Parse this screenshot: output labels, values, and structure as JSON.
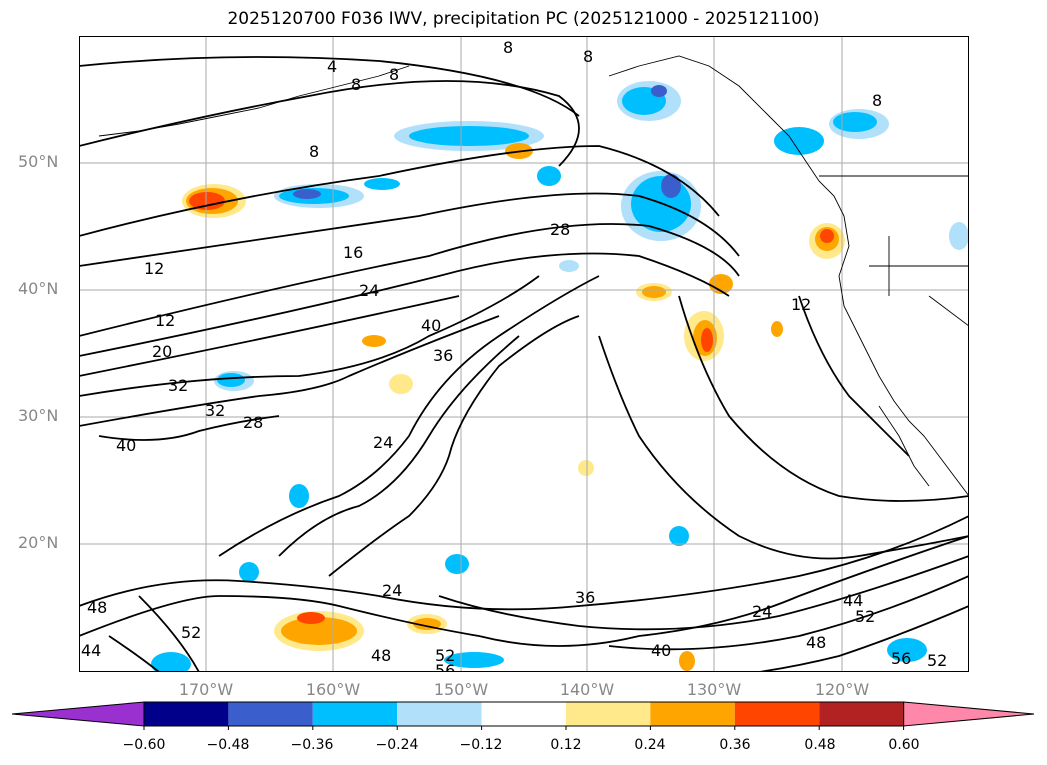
{
  "title": "2025120700 F036 IWV, precipitation PC (2025121000 - 2025121100)",
  "map": {
    "lat_labels": [
      "50°N",
      "40°N",
      "30°N",
      "20°N"
    ],
    "lon_labels": [
      "170°W",
      "160°W",
      "150°W",
      "140°W",
      "130°W",
      "120°W"
    ],
    "gridlines": true,
    "extent": {
      "lon": [
        -180,
        -110
      ],
      "lat": [
        10,
        60
      ]
    },
    "iwv_contour_labels": [
      "4",
      "8",
      "8",
      "8",
      "8",
      "8",
      "8",
      "12",
      "12",
      "12",
      "16",
      "20",
      "24",
      "24",
      "24",
      "24",
      "28",
      "28",
      "32",
      "32",
      "36",
      "36",
      "40",
      "40",
      "40",
      "44",
      "44",
      "48",
      "48",
      "48",
      "52",
      "52",
      "52",
      "52",
      "56",
      "56"
    ],
    "land_color": "#ffffff",
    "coast_color": "#000000"
  },
  "colorbar": {
    "ticks": [
      "−0.60",
      "−0.48",
      "−0.36",
      "−0.24",
      "−0.12",
      "0.12",
      "0.24",
      "0.36",
      "0.48",
      "0.60"
    ],
    "colors": [
      "#9b30d0",
      "#00008b",
      "#3a5fcd",
      "#00bfff",
      "#b0e0fa",
      "#ffffff",
      "#ffe98a",
      "#ffa500",
      "#ff4500",
      "#b22222",
      "#ff88aa"
    ],
    "extend": "both"
  }
}
